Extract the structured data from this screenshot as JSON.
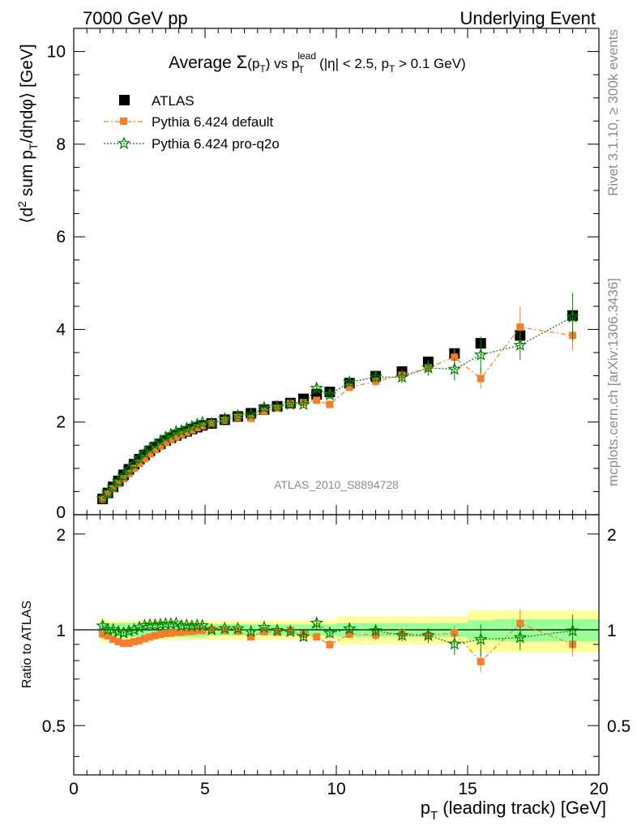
{
  "header": {
    "left": "7000 GeV pp",
    "right": "Underlying Event"
  },
  "side_labels": {
    "rivet": "Rivet 3.1.10, ≥ 300k events",
    "mcplots": "mcplots.cern.ch [arXiv:1306.3436]"
  },
  "plot": {
    "title": {
      "prefix": "Average ",
      "sigma": "Σ",
      "sigma_arg_open": "(p",
      "sigma_arg_sub": "T",
      "sigma_arg_close": ")",
      "vs": " vs p",
      "lead_sup": "lead",
      "lead_sub": "T",
      "cuts_open": " (|η| < 2.5, p",
      "cuts_sub": "T",
      "cuts_close": " > 0.1 GeV)"
    },
    "ylabel": {
      "open": "⟨d",
      "sup2": "2",
      "mid": " sum p",
      "sub": "T",
      "close": "/dηdφ⟩ [GeV]"
    },
    "analysis_tag": "ATLAS_2010_S8894728",
    "ratio_ylabel": "Ratio to ATLAS",
    "xlabel": {
      "p": "p",
      "sub": "T",
      "rest": " (leading track) [GeV]"
    }
  },
  "chart_data": {
    "type": "scatter",
    "xlim": [
      0,
      20
    ],
    "ylim_main": [
      0,
      10.5
    ],
    "ylim_ratio": [
      0.35,
      2.3
    ],
    "ratio_log_scale": true,
    "x_ticks": [
      "0",
      "5",
      "10",
      "15",
      "20"
    ],
    "y_ticks_main": [
      "0",
      "2",
      "4",
      "6",
      "8",
      "10"
    ],
    "y_ticks_ratio": [
      "0.5",
      "1",
      "2"
    ],
    "legend_position": "top-left",
    "colors": {
      "atlas": "#000000",
      "pythia_default": "#f47e2b",
      "pythia_proq2o": "#008000",
      "band_inner": "#99ff99",
      "band_outer": "#ffff99"
    },
    "series": [
      {
        "name": "ATLAS",
        "x": [
          1.1,
          1.3,
          1.5,
          1.7,
          1.9,
          2.1,
          2.3,
          2.5,
          2.7,
          2.9,
          3.1,
          3.3,
          3.5,
          3.7,
          3.9,
          4.1,
          4.3,
          4.5,
          4.7,
          4.9,
          5.25,
          5.75,
          6.25,
          6.75,
          7.25,
          7.75,
          8.25,
          8.75,
          9.25,
          9.75,
          10.5,
          11.5,
          12.5,
          13.5,
          14.5,
          15.5,
          17.0,
          19.0
        ],
        "y": [
          0.34,
          0.47,
          0.6,
          0.73,
          0.86,
          0.98,
          1.09,
          1.2,
          1.29,
          1.38,
          1.46,
          1.53,
          1.6,
          1.66,
          1.71,
          1.76,
          1.8,
          1.85,
          1.89,
          1.93,
          1.97,
          2.05,
          2.12,
          2.19,
          2.27,
          2.34,
          2.41,
          2.5,
          2.6,
          2.65,
          2.84,
          2.99,
          3.09,
          3.3,
          3.48,
          3.7,
          3.87,
          4.3
        ]
      },
      {
        "name": "Pythia 6.424 default",
        "x": [
          1.1,
          1.3,
          1.5,
          1.7,
          1.9,
          2.1,
          2.3,
          2.5,
          2.7,
          2.9,
          3.1,
          3.3,
          3.5,
          3.7,
          3.9,
          4.1,
          4.3,
          4.5,
          4.7,
          4.9,
          5.25,
          5.75,
          6.25,
          6.75,
          7.25,
          7.75,
          8.25,
          8.75,
          9.25,
          9.75,
          10.5,
          11.5,
          12.5,
          13.5,
          14.5,
          15.5,
          17.0,
          19.0
        ],
        "y": [
          0.33,
          0.45,
          0.56,
          0.67,
          0.78,
          0.89,
          1.0,
          1.11,
          1.21,
          1.31,
          1.4,
          1.48,
          1.56,
          1.62,
          1.68,
          1.73,
          1.78,
          1.83,
          1.88,
          1.92,
          1.97,
          2.04,
          2.1,
          2.08,
          2.24,
          2.3,
          2.4,
          2.42,
          2.47,
          2.38,
          2.75,
          2.88,
          3.01,
          3.17,
          3.4,
          2.94,
          4.05,
          3.87
        ],
        "err": [
          0.01,
          0.01,
          0.01,
          0.01,
          0.01,
          0.01,
          0.01,
          0.01,
          0.01,
          0.01,
          0.01,
          0.02,
          0.02,
          0.02,
          0.02,
          0.02,
          0.02,
          0.02,
          0.02,
          0.02,
          0.02,
          0.03,
          0.03,
          0.04,
          0.04,
          0.05,
          0.05,
          0.06,
          0.07,
          0.08,
          0.08,
          0.1,
          0.12,
          0.15,
          0.18,
          0.22,
          0.45,
          0.33
        ]
      },
      {
        "name": "Pythia 6.424 pro-q2o",
        "x": [
          1.1,
          1.3,
          1.5,
          1.7,
          1.9,
          2.1,
          2.3,
          2.5,
          2.7,
          2.9,
          3.1,
          3.3,
          3.5,
          3.7,
          3.9,
          4.1,
          4.3,
          4.5,
          4.7,
          4.9,
          5.25,
          5.75,
          6.25,
          6.75,
          7.25,
          7.75,
          8.25,
          8.75,
          9.25,
          9.75,
          10.5,
          11.5,
          12.5,
          13.5,
          14.5,
          15.5,
          17.0,
          19.0
        ],
        "y": [
          0.35,
          0.47,
          0.6,
          0.72,
          0.84,
          0.97,
          1.09,
          1.22,
          1.33,
          1.43,
          1.51,
          1.59,
          1.67,
          1.73,
          1.79,
          1.81,
          1.86,
          1.9,
          1.95,
          1.99,
          1.97,
          2.07,
          2.14,
          2.16,
          2.31,
          2.33,
          2.38,
          2.38,
          2.73,
          2.59,
          2.86,
          2.97,
          2.97,
          3.17,
          3.14,
          3.45,
          3.66,
          4.27
        ],
        "err": [
          0.01,
          0.01,
          0.01,
          0.01,
          0.01,
          0.01,
          0.01,
          0.01,
          0.01,
          0.01,
          0.01,
          0.02,
          0.02,
          0.02,
          0.02,
          0.02,
          0.02,
          0.02,
          0.02,
          0.02,
          0.02,
          0.03,
          0.03,
          0.04,
          0.04,
          0.05,
          0.06,
          0.07,
          0.12,
          0.09,
          0.09,
          0.11,
          0.13,
          0.17,
          0.24,
          0.4,
          0.32,
          0.52
        ]
      }
    ],
    "uncertainty_bands": {
      "x_edges": [
        1.0,
        1.2,
        1.4,
        1.6,
        1.8,
        2.0,
        2.2,
        2.4,
        2.6,
        2.8,
        3.0,
        3.2,
        3.4,
        3.6,
        3.8,
        4.0,
        4.2,
        4.4,
        4.6,
        4.8,
        5.0,
        5.5,
        6.0,
        6.5,
        7.0,
        7.5,
        8.0,
        8.5,
        9.0,
        9.5,
        10.0,
        11.0,
        12.0,
        13.0,
        14.0,
        15.0,
        16.0,
        18.0,
        20.0
      ],
      "inner_half_width": [
        0.06,
        0.05,
        0.05,
        0.05,
        0.05,
        0.05,
        0.05,
        0.05,
        0.05,
        0.05,
        0.05,
        0.05,
        0.05,
        0.05,
        0.05,
        0.05,
        0.05,
        0.05,
        0.05,
        0.05,
        0.04,
        0.04,
        0.04,
        0.04,
        0.04,
        0.04,
        0.04,
        0.04,
        0.04,
        0.04,
        0.05,
        0.05,
        0.05,
        0.05,
        0.05,
        0.07,
        0.08,
        0.08
      ],
      "outer_half_width": [
        0.09,
        0.07,
        0.07,
        0.07,
        0.07,
        0.07,
        0.07,
        0.07,
        0.07,
        0.07,
        0.07,
        0.07,
        0.07,
        0.07,
        0.07,
        0.07,
        0.07,
        0.07,
        0.07,
        0.07,
        0.07,
        0.07,
        0.07,
        0.07,
        0.07,
        0.07,
        0.07,
        0.07,
        0.07,
        0.07,
        0.1,
        0.1,
        0.1,
        0.1,
        0.1,
        0.15,
        0.15,
        0.15
      ]
    }
  }
}
